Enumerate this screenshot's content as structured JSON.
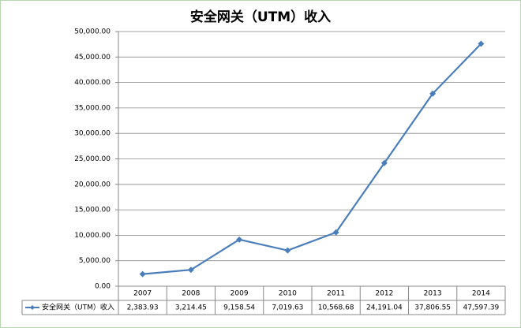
{
  "chart_data": {
    "type": "line",
    "title": "安全网关（UTM）收入",
    "categories": [
      "2007",
      "2008",
      "2009",
      "2010",
      "2011",
      "2012",
      "2013",
      "2014"
    ],
    "series": [
      {
        "name": "安全网关（UTM）收入",
        "color": "#4a7ebb",
        "values": [
          2383.93,
          3214.45,
          9158.54,
          7019.63,
          10568.68,
          24191.04,
          37806.55,
          47597.39
        ],
        "value_labels": [
          "2,383.93",
          "3,214.45",
          "9,158.54",
          "7,019.63",
          "10,568.68",
          "24,191.04",
          "37,806.55",
          "47,597.39"
        ]
      }
    ],
    "ylim": [
      0,
      50000
    ],
    "yticks": [
      {
        "value": 0,
        "label": "0.00"
      },
      {
        "value": 5000,
        "label": "5,000.00"
      },
      {
        "value": 10000,
        "label": "10,000.00"
      },
      {
        "value": 15000,
        "label": "15,000.00"
      },
      {
        "value": 20000,
        "label": "20,000.00"
      },
      {
        "value": 25000,
        "label": "25,000.00"
      },
      {
        "value": 30000,
        "label": "30,000.00"
      },
      {
        "value": 35000,
        "label": "35,000.00"
      },
      {
        "value": 40000,
        "label": "40,000.00"
      },
      {
        "value": 45000,
        "label": "45,000.00"
      },
      {
        "value": 50000,
        "label": "50,000.00"
      }
    ],
    "grid": true
  }
}
